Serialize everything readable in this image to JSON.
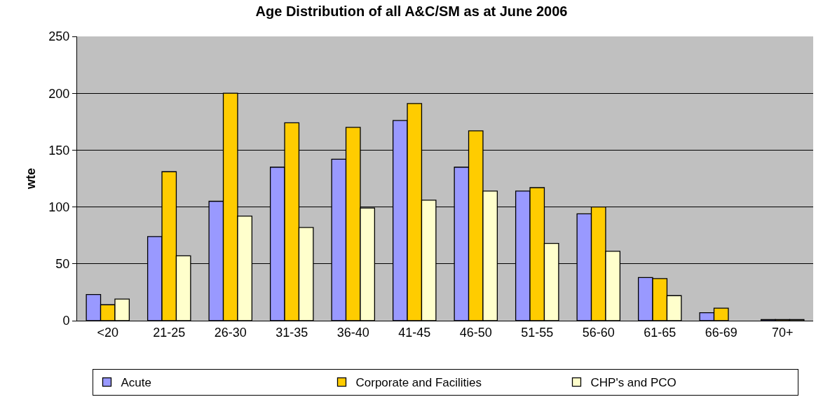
{
  "chart_data": {
    "type": "bar",
    "title": "Age Distribution of all A&C/SM as at June 2006",
    "ylabel": "wte",
    "categories": [
      "<20",
      "21-25",
      "26-30",
      "31-35",
      "36-40",
      "41-45",
      "46-50",
      "51-55",
      "56-60",
      "61-65",
      "66-69",
      "70+"
    ],
    "series": [
      {
        "name": "Acute",
        "color": "#9999ff",
        "values": [
          23,
          74,
          105,
          135,
          142,
          176,
          135,
          114,
          94,
          38,
          7,
          1
        ]
      },
      {
        "name": "Corporate and Facilities",
        "color": "#ffcc00",
        "values": [
          14,
          131,
          200,
          174,
          170,
          191,
          167,
          117,
          100,
          37,
          11,
          1
        ]
      },
      {
        "name": "CHP's and PCO",
        "color": "#ffffcc",
        "values": [
          19,
          57,
          92,
          82,
          99,
          106,
          114,
          68,
          61,
          22,
          null,
          1
        ]
      }
    ],
    "ylim": [
      0,
      250
    ],
    "yticks": [
      0,
      50,
      100,
      150,
      200,
      250
    ],
    "grid": "y",
    "legend": "bottom"
  }
}
